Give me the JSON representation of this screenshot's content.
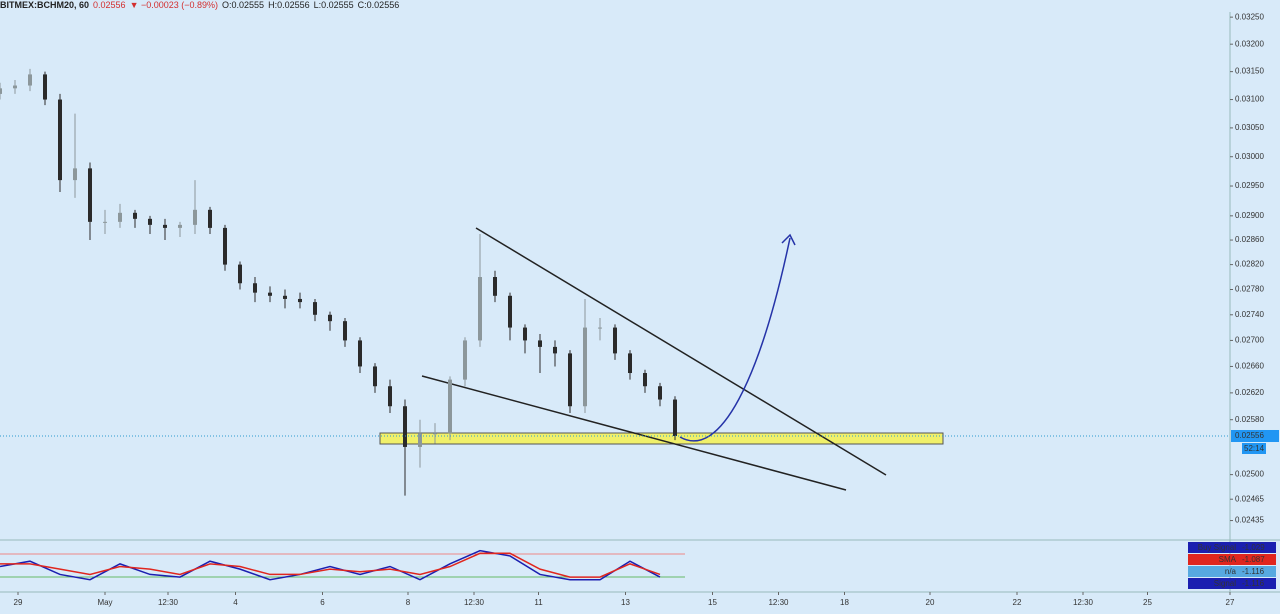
{
  "header": {
    "symbol": "BITMEX:BCHM20, 60",
    "price": "0.02556",
    "change": "▼ −0.00023 (−0.89%)",
    "open": "O:0.02555",
    "high": "H:0.02556",
    "low": "L:0.02555",
    "close": "C:0.02556"
  },
  "chart_data": {
    "type": "candlestick",
    "log_scale": true,
    "up_color": "#8c979b",
    "down_color": "#2b2b2b",
    "x": [
      0,
      1,
      2,
      3,
      4,
      5,
      6,
      7,
      8,
      9,
      10,
      11,
      12,
      13,
      14,
      15,
      16,
      17,
      18,
      19,
      20,
      21,
      22,
      23,
      24,
      25,
      26,
      27,
      28,
      29,
      30,
      31,
      32,
      33,
      34,
      35,
      36,
      37,
      38,
      39,
      40,
      41,
      42,
      43,
      44,
      45
    ],
    "open": [
      0.0311,
      0.0312,
      0.03125,
      0.03145,
      0.031,
      0.0296,
      0.0298,
      0.0289,
      0.0289,
      0.02905,
      0.02895,
      0.02885,
      0.0288,
      0.02885,
      0.0291,
      0.0288,
      0.0282,
      0.0279,
      0.02775,
      0.0277,
      0.02765,
      0.0276,
      0.0274,
      0.0273,
      0.027,
      0.0266,
      0.0263,
      0.026,
      0.0254,
      0.0256,
      0.0256,
      0.0264,
      0.027,
      0.028,
      0.0277,
      0.0272,
      0.027,
      0.0269,
      0.0268,
      0.026,
      0.0272,
      0.0272,
      0.0268,
      0.0265,
      0.0263,
      0.0261
    ],
    "high": [
      0.0313,
      0.03135,
      0.03155,
      0.0315,
      0.0311,
      0.03075,
      0.0299,
      0.0291,
      0.0292,
      0.0291,
      0.029,
      0.02895,
      0.0289,
      0.0296,
      0.02915,
      0.02885,
      0.02825,
      0.028,
      0.02785,
      0.0278,
      0.02775,
      0.02765,
      0.02745,
      0.02735,
      0.02705,
      0.02665,
      0.0264,
      0.0261,
      0.0258,
      0.02575,
      0.02645,
      0.02705,
      0.0287,
      0.0281,
      0.02775,
      0.02725,
      0.0271,
      0.027,
      0.02685,
      0.02765,
      0.02735,
      0.02725,
      0.02685,
      0.02655,
      0.02635,
      0.02615
    ],
    "low": [
      0.031,
      0.0311,
      0.03115,
      0.0309,
      0.0294,
      0.0293,
      0.0286,
      0.0287,
      0.0288,
      0.0288,
      0.0287,
      0.0286,
      0.02865,
      0.0287,
      0.0287,
      0.0281,
      0.0278,
      0.0276,
      0.0276,
      0.0275,
      0.0275,
      0.0273,
      0.02715,
      0.0269,
      0.0265,
      0.0262,
      0.0259,
      0.0247,
      0.0251,
      0.02545,
      0.0255,
      0.0263,
      0.0269,
      0.0276,
      0.027,
      0.0268,
      0.0265,
      0.0266,
      0.0259,
      0.0259,
      0.027,
      0.0267,
      0.0264,
      0.0262,
      0.026,
      0.0255
    ],
    "close": [
      0.0312,
      0.03125,
      0.03145,
      0.031,
      0.0296,
      0.0298,
      0.0289,
      0.0289,
      0.02905,
      0.02895,
      0.02885,
      0.0288,
      0.02885,
      0.0291,
      0.0288,
      0.0282,
      0.0279,
      0.02775,
      0.0277,
      0.02765,
      0.0276,
      0.0274,
      0.0273,
      0.027,
      0.0266,
      0.0263,
      0.026,
      0.0254,
      0.0256,
      0.0256,
      0.0264,
      0.027,
      0.028,
      0.0277,
      0.0272,
      0.027,
      0.0269,
      0.0268,
      0.026,
      0.0272,
      0.0272,
      0.0268,
      0.0265,
      0.0263,
      0.0261,
      0.02556
    ],
    "xlim": [
      0,
      82
    ],
    "xticks": [
      {
        "value": 1.2,
        "label": "29"
      },
      {
        "value": 7,
        "label": "May"
      },
      {
        "value": 11.2,
        "label": "12:30"
      },
      {
        "value": 15.7,
        "label": "4"
      },
      {
        "value": 21.5,
        "label": "6"
      },
      {
        "value": 27.2,
        "label": "8"
      },
      {
        "value": 31.6,
        "label": "12:30"
      },
      {
        "value": 35.9,
        "label": "11"
      },
      {
        "value": 41.7,
        "label": "13"
      },
      {
        "value": 47.5,
        "label": "15"
      },
      {
        "value": 51.9,
        "label": "12:30"
      },
      {
        "value": 56.3,
        "label": "18"
      },
      {
        "value": 62,
        "label": "20"
      },
      {
        "value": 67.8,
        "label": "22"
      },
      {
        "value": 72.2,
        "label": "12:30"
      },
      {
        "value": 76.5,
        "label": "25"
      },
      {
        "value": 82,
        "label": "27"
      }
    ],
    "ylim": [
      0.02408,
      0.03254
    ],
    "yticks": [
      {
        "value": 0.0325,
        "label": "0.03250"
      },
      {
        "value": 0.032,
        "label": "0.03200"
      },
      {
        "value": 0.0315,
        "label": "0.03150"
      },
      {
        "value": 0.031,
        "label": "0.03100"
      },
      {
        "value": 0.0305,
        "label": "0.03050"
      },
      {
        "value": 0.03,
        "label": "0.03000"
      },
      {
        "value": 0.0295,
        "label": "0.02950"
      },
      {
        "value": 0.029,
        "label": "0.02900"
      },
      {
        "value": 0.0286,
        "label": "0.02860"
      },
      {
        "value": 0.0282,
        "label": "0.02820"
      },
      {
        "value": 0.0278,
        "label": "0.02780"
      },
      {
        "value": 0.0274,
        "label": "0.02740"
      },
      {
        "value": 0.027,
        "label": "0.02700"
      },
      {
        "value": 0.0266,
        "label": "0.02660"
      },
      {
        "value": 0.0262,
        "label": "0.02620"
      },
      {
        "value": 0.0258,
        "label": "0.02580"
      },
      {
        "value": 0.025,
        "label": "0.02500"
      },
      {
        "value": 0.02465,
        "label": "0.02465"
      },
      {
        "value": 0.02435,
        "label": "0.02435"
      }
    ],
    "last_price": 0.02556,
    "countdown": "52:14",
    "indicator": {
      "x": [
        0,
        2,
        4,
        6,
        8,
        10,
        12,
        14,
        16,
        18,
        20,
        22,
        24,
        26,
        28,
        30,
        32,
        34,
        36,
        38,
        40,
        42,
        44
      ],
      "ylim": [
        -1.3,
        -0.6
      ],
      "series": [
        {
          "name": "Buy Signal",
          "color": "#1b1fb0",
          "values": [
            -0.95,
            -0.85,
            -1.1,
            -1.2,
            -0.9,
            -1.1,
            -1.15,
            -0.85,
            -1.0,
            -1.2,
            -1.1,
            -0.95,
            -1.1,
            -0.95,
            -1.2,
            -0.9,
            -0.65,
            -0.75,
            -1.1,
            -1.2,
            -1.2,
            -0.85,
            -1.15
          ]
        },
        {
          "name": "SMA",
          "color": "#e0261e",
          "values": [
            -0.9,
            -0.9,
            -1.0,
            -1.1,
            -0.95,
            -1.0,
            -1.1,
            -0.9,
            -0.95,
            -1.1,
            -1.1,
            -1.0,
            -1.05,
            -1.0,
            -1.1,
            -0.95,
            -0.7,
            -0.7,
            -1.0,
            -1.15,
            -1.15,
            -0.9,
            -1.1
          ]
        }
      ],
      "legend": [
        {
          "name": "Buy Signal",
          "value": -1.029,
          "color": "#1b1fb0"
        },
        {
          "name": "SMA",
          "value": -1.087,
          "color": "#e0261e"
        },
        {
          "name": "n/a",
          "value": -1.116,
          "color": "#57a9e0"
        },
        {
          "name": "Signal",
          "value": -1.116,
          "color": "#1b1fb0"
        }
      ]
    }
  }
}
